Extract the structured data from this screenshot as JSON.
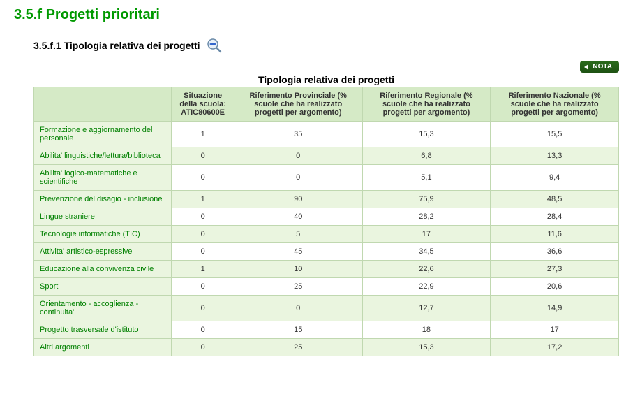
{
  "section": {
    "title": "3.5.f Progetti prioritari",
    "subsection_title": "3.5.f.1 Tipologia relativa dei progetti"
  },
  "nota_label": "NOTA",
  "table": {
    "caption": "Tipologia relativa dei progetti",
    "columns": [
      "",
      "Situazione della scuola: ATIC80600E",
      "Riferimento Provinciale (% scuole che ha realizzato progetti per argomento)",
      "Riferimento Regionale (% scuole che ha realizzato progetti per argomento)",
      "Riferimento Nazionale (% scuole che ha realizzato progetti per argomento)"
    ],
    "col_widths": [
      "200px",
      "90px",
      "190px",
      "190px",
      "190px"
    ],
    "header_bg": "#d5eac6",
    "header_border": "#c0d8b0",
    "row_label_color": "#008000",
    "row_label_bg": "#eaf5df",
    "alt_row_bg": "#eaf5df",
    "rows": [
      {
        "label": "Formazione e aggiornamento del personale",
        "values": [
          "1",
          "35",
          "15,3",
          "15,5"
        ]
      },
      {
        "label": "Abilita' linguistiche/lettura/biblioteca",
        "values": [
          "0",
          "0",
          "6,8",
          "13,3"
        ]
      },
      {
        "label": "Abilita' logico-matematiche e scientifiche",
        "values": [
          "0",
          "0",
          "5,1",
          "9,4"
        ]
      },
      {
        "label": "Prevenzione del disagio - inclusione",
        "values": [
          "1",
          "90",
          "75,9",
          "48,5"
        ]
      },
      {
        "label": "Lingue straniere",
        "values": [
          "0",
          "40",
          "28,2",
          "28,4"
        ]
      },
      {
        "label": "Tecnologie informatiche (TIC)",
        "values": [
          "0",
          "5",
          "17",
          "11,6"
        ]
      },
      {
        "label": "Attivita' artistico-espressive",
        "values": [
          "0",
          "45",
          "34,5",
          "36,6"
        ]
      },
      {
        "label": "Educazione alla convivenza civile",
        "values": [
          "1",
          "10",
          "22,6",
          "27,3"
        ]
      },
      {
        "label": "Sport",
        "values": [
          "0",
          "25",
          "22,9",
          "20,6"
        ]
      },
      {
        "label": "Orientamento - accoglienza - continuita'",
        "values": [
          "0",
          "0",
          "12,7",
          "14,9"
        ]
      },
      {
        "label": "Progetto trasversale d'istituto",
        "values": [
          "0",
          "15",
          "18",
          "17"
        ]
      },
      {
        "label": "Altri argomenti",
        "values": [
          "0",
          "25",
          "15,3",
          "17,2"
        ]
      }
    ]
  },
  "colors": {
    "section_title": "#009900",
    "text": "#333333",
    "green_dark": "#1e5213"
  }
}
